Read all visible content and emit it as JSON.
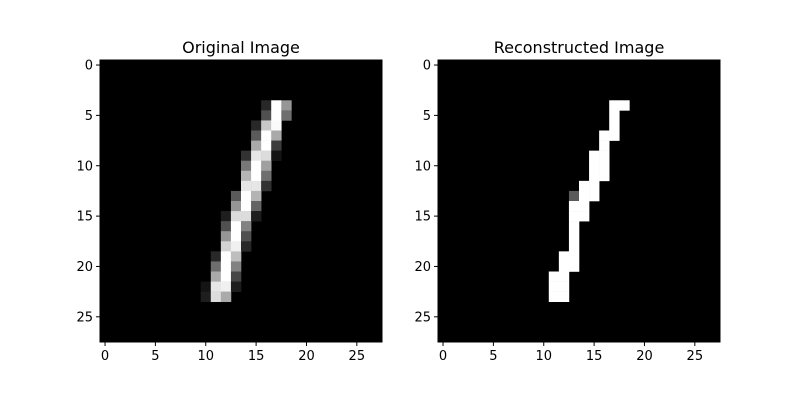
{
  "figure": {
    "background": "#ffffff",
    "colormap": "gray"
  },
  "chart_data": [
    {
      "type": "heatmap",
      "title": "Original Image",
      "xlabel": "",
      "ylabel": "",
      "size": [
        28,
        28
      ],
      "xlim": [
        -0.5,
        27.5
      ],
      "ylim": [
        27.5,
        -0.5
      ],
      "xticks": [
        0,
        5,
        10,
        15,
        20,
        25
      ],
      "yticks": [
        0,
        5,
        10,
        15,
        20,
        25
      ],
      "grid": false,
      "value_range": [
        0,
        255
      ],
      "nonzero_pixels": [
        {
          "r": 4,
          "c": 16,
          "v": 40
        },
        {
          "r": 4,
          "c": 17,
          "v": 255
        },
        {
          "r": 4,
          "c": 18,
          "v": 150
        },
        {
          "r": 5,
          "c": 16,
          "v": 80
        },
        {
          "r": 5,
          "c": 17,
          "v": 255
        },
        {
          "r": 5,
          "c": 18,
          "v": 110
        },
        {
          "r": 6,
          "c": 15,
          "v": 40
        },
        {
          "r": 6,
          "c": 16,
          "v": 200
        },
        {
          "r": 6,
          "c": 17,
          "v": 250
        },
        {
          "r": 7,
          "c": 15,
          "v": 90
        },
        {
          "r": 7,
          "c": 16,
          "v": 255
        },
        {
          "r": 7,
          "c": 17,
          "v": 170
        },
        {
          "r": 8,
          "c": 15,
          "v": 170
        },
        {
          "r": 8,
          "c": 16,
          "v": 255
        },
        {
          "r": 8,
          "c": 17,
          "v": 60
        },
        {
          "r": 9,
          "c": 14,
          "v": 50
        },
        {
          "r": 9,
          "c": 15,
          "v": 230
        },
        {
          "r": 9,
          "c": 16,
          "v": 220
        },
        {
          "r": 9,
          "c": 17,
          "v": 20
        },
        {
          "r": 10,
          "c": 14,
          "v": 120
        },
        {
          "r": 10,
          "c": 15,
          "v": 255
        },
        {
          "r": 10,
          "c": 16,
          "v": 160
        },
        {
          "r": 11,
          "c": 14,
          "v": 180
        },
        {
          "r": 11,
          "c": 15,
          "v": 255
        },
        {
          "r": 11,
          "c": 16,
          "v": 110
        },
        {
          "r": 12,
          "c": 14,
          "v": 230
        },
        {
          "r": 12,
          "c": 15,
          "v": 230
        },
        {
          "r": 12,
          "c": 16,
          "v": 50
        },
        {
          "r": 13,
          "c": 13,
          "v": 90
        },
        {
          "r": 13,
          "c": 14,
          "v": 255
        },
        {
          "r": 13,
          "c": 15,
          "v": 180
        },
        {
          "r": 14,
          "c": 13,
          "v": 150
        },
        {
          "r": 14,
          "c": 14,
          "v": 255
        },
        {
          "r": 14,
          "c": 15,
          "v": 100
        },
        {
          "r": 15,
          "c": 12,
          "v": 30
        },
        {
          "r": 15,
          "c": 13,
          "v": 220
        },
        {
          "r": 15,
          "c": 14,
          "v": 220
        },
        {
          "r": 15,
          "c": 15,
          "v": 30
        },
        {
          "r": 16,
          "c": 12,
          "v": 80
        },
        {
          "r": 16,
          "c": 13,
          "v": 255
        },
        {
          "r": 16,
          "c": 14,
          "v": 130
        },
        {
          "r": 17,
          "c": 12,
          "v": 150
        },
        {
          "r": 17,
          "c": 13,
          "v": 255
        },
        {
          "r": 17,
          "c": 14,
          "v": 80
        },
        {
          "r": 18,
          "c": 12,
          "v": 210
        },
        {
          "r": 18,
          "c": 13,
          "v": 240
        },
        {
          "r": 18,
          "c": 14,
          "v": 40
        },
        {
          "r": 19,
          "c": 11,
          "v": 40
        },
        {
          "r": 19,
          "c": 12,
          "v": 255
        },
        {
          "r": 19,
          "c": 13,
          "v": 190
        },
        {
          "r": 20,
          "c": 11,
          "v": 110
        },
        {
          "r": 20,
          "c": 12,
          "v": 255
        },
        {
          "r": 20,
          "c": 13,
          "v": 130
        },
        {
          "r": 21,
          "c": 11,
          "v": 170
        },
        {
          "r": 21,
          "c": 12,
          "v": 255
        },
        {
          "r": 21,
          "c": 13,
          "v": 70
        },
        {
          "r": 22,
          "c": 10,
          "v": 20
        },
        {
          "r": 22,
          "c": 11,
          "v": 230
        },
        {
          "r": 22,
          "c": 12,
          "v": 240
        },
        {
          "r": 22,
          "c": 13,
          "v": 30
        },
        {
          "r": 23,
          "c": 10,
          "v": 30
        },
        {
          "r": 23,
          "c": 11,
          "v": 220
        },
        {
          "r": 23,
          "c": 12,
          "v": 170
        }
      ]
    },
    {
      "type": "heatmap",
      "title": "Reconstructed Image",
      "xlabel": "",
      "ylabel": "",
      "size": [
        28,
        28
      ],
      "xlim": [
        -0.5,
        27.5
      ],
      "ylim": [
        27.5,
        -0.5
      ],
      "xticks": [
        0,
        5,
        10,
        15,
        20,
        25
      ],
      "yticks": [
        0,
        5,
        10,
        15,
        20,
        25
      ],
      "grid": false,
      "value_range": [
        0,
        255
      ],
      "nonzero_pixels": [
        {
          "r": 4,
          "c": 17,
          "v": 255
        },
        {
          "r": 4,
          "c": 18,
          "v": 255
        },
        {
          "r": 5,
          "c": 17,
          "v": 255
        },
        {
          "r": 6,
          "c": 17,
          "v": 255
        },
        {
          "r": 7,
          "c": 16,
          "v": 255
        },
        {
          "r": 7,
          "c": 17,
          "v": 255
        },
        {
          "r": 8,
          "c": 16,
          "v": 255
        },
        {
          "r": 9,
          "c": 15,
          "v": 255
        },
        {
          "r": 9,
          "c": 16,
          "v": 255
        },
        {
          "r": 10,
          "c": 15,
          "v": 255
        },
        {
          "r": 10,
          "c": 16,
          "v": 255
        },
        {
          "r": 11,
          "c": 15,
          "v": 255
        },
        {
          "r": 11,
          "c": 16,
          "v": 255
        },
        {
          "r": 12,
          "c": 14,
          "v": 255
        },
        {
          "r": 12,
          "c": 15,
          "v": 255
        },
        {
          "r": 13,
          "c": 13,
          "v": 90
        },
        {
          "r": 13,
          "c": 14,
          "v": 255
        },
        {
          "r": 13,
          "c": 15,
          "v": 255
        },
        {
          "r": 14,
          "c": 13,
          "v": 255
        },
        {
          "r": 14,
          "c": 14,
          "v": 255
        },
        {
          "r": 15,
          "c": 13,
          "v": 255
        },
        {
          "r": 15,
          "c": 14,
          "v": 255
        },
        {
          "r": 16,
          "c": 13,
          "v": 255
        },
        {
          "r": 17,
          "c": 13,
          "v": 255
        },
        {
          "r": 18,
          "c": 13,
          "v": 255
        },
        {
          "r": 19,
          "c": 12,
          "v": 255
        },
        {
          "r": 19,
          "c": 13,
          "v": 255
        },
        {
          "r": 20,
          "c": 12,
          "v": 255
        },
        {
          "r": 20,
          "c": 13,
          "v": 255
        },
        {
          "r": 21,
          "c": 11,
          "v": 255
        },
        {
          "r": 21,
          "c": 12,
          "v": 255
        },
        {
          "r": 22,
          "c": 11,
          "v": 255
        },
        {
          "r": 22,
          "c": 12,
          "v": 255
        },
        {
          "r": 23,
          "c": 11,
          "v": 255
        },
        {
          "r": 23,
          "c": 12,
          "v": 255
        }
      ]
    }
  ]
}
